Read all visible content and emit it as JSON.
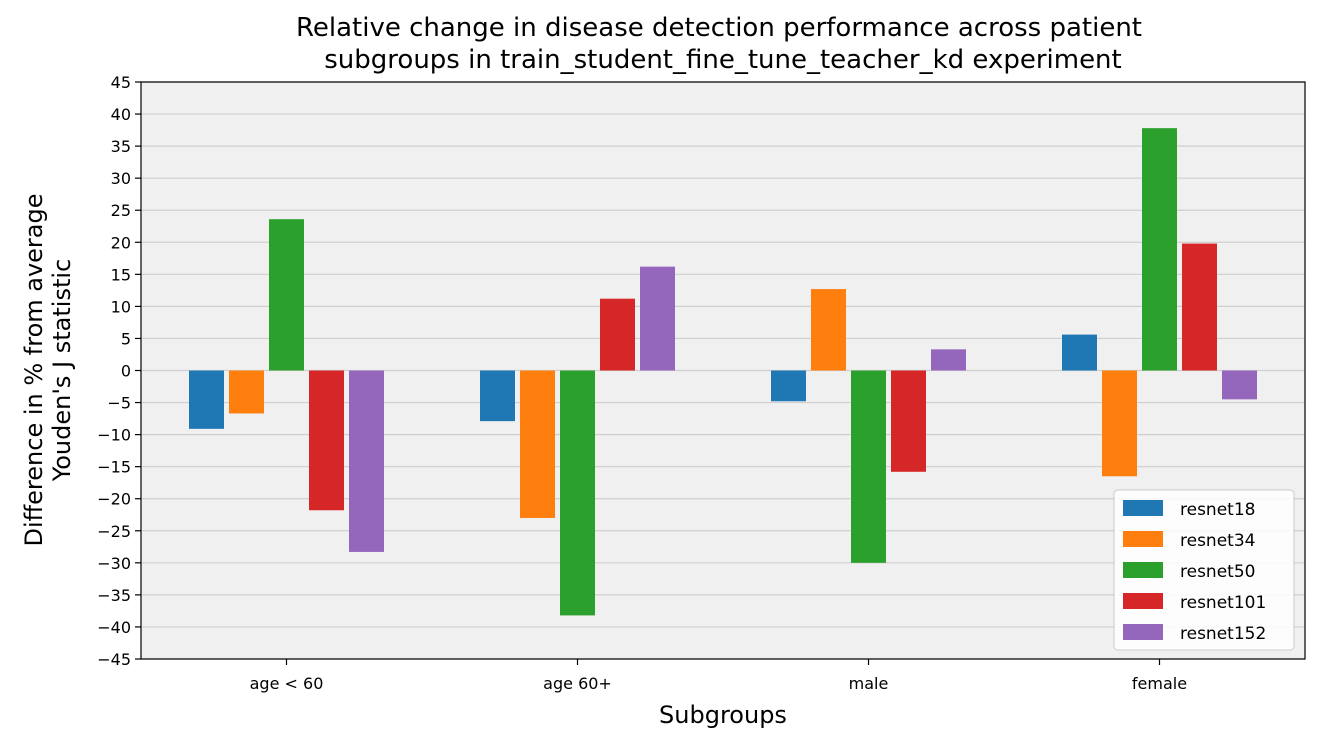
{
  "chart_data": {
    "type": "bar",
    "title_lines": [
      "Relative change in disease detection performance across patient",
      "subgroups in train_student_fine_tune_teacher_kd experiment"
    ],
    "xlabel": "Subgroups",
    "ylabel_lines": [
      "Difference in % from average",
      "Youden's J statistic"
    ],
    "categories": [
      "age < 60",
      "age 60+",
      "male",
      "female"
    ],
    "ylim": [
      -45,
      45
    ],
    "yticks": [
      -45,
      -40,
      -35,
      -30,
      -25,
      -20,
      -15,
      -10,
      -5,
      0,
      5,
      10,
      15,
      20,
      25,
      30,
      35,
      40,
      45
    ],
    "ytick_labels": [
      "−45",
      "−40",
      "−35",
      "−30",
      "−25",
      "−20",
      "−15",
      "−10",
      "−5",
      "0",
      "5",
      "10",
      "15",
      "20",
      "25",
      "30",
      "35",
      "40",
      "45"
    ],
    "grid": "y",
    "legend_position": "lower-right",
    "background_color": "#f0f0f0",
    "series": [
      {
        "name": "resnet18",
        "color": "#1f77b4",
        "values": [
          -9.1,
          -7.9,
          -4.8,
          5.6
        ]
      },
      {
        "name": "resnet34",
        "color": "#ff7f0e",
        "values": [
          -6.7,
          -23.0,
          12.7,
          -16.5
        ]
      },
      {
        "name": "resnet50",
        "color": "#2ca02c",
        "values": [
          23.6,
          -38.2,
          -30.0,
          37.8
        ]
      },
      {
        "name": "resnet101",
        "color": "#d62728",
        "values": [
          -21.8,
          11.2,
          -15.8,
          19.8
        ]
      },
      {
        "name": "resnet152",
        "color": "#9467bd",
        "values": [
          -28.3,
          16.2,
          3.3,
          -4.5
        ]
      }
    ]
  }
}
